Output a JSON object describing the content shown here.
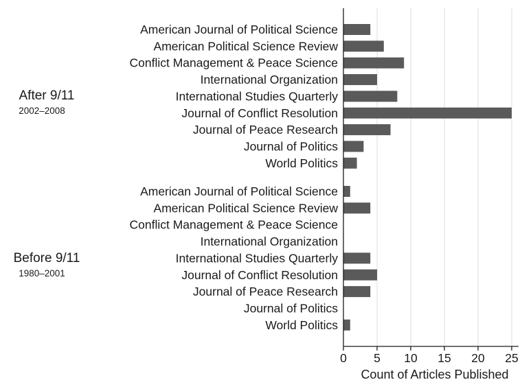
{
  "chart_data": {
    "type": "bar",
    "orientation": "horizontal",
    "xlabel": "Count of Articles Published",
    "xlim": [
      0,
      26
    ],
    "xticks": [
      0,
      5,
      10,
      15,
      20,
      25
    ],
    "grid": "vertical",
    "bar_color": "#5a5a5a",
    "groups": [
      {
        "name": "After 9/11",
        "period": "2002–2008",
        "categories": [
          "American Journal of Political Science",
          "American Political Science Review",
          "Conflict Management & Peace Science",
          "International Organization",
          "International Studies Quarterly",
          "Journal of Conflict Resolution",
          "Journal of Peace Research",
          "Journal of Politics",
          "World Politics"
        ],
        "values": [
          4,
          6,
          9,
          5,
          8,
          25,
          7,
          3,
          2
        ]
      },
      {
        "name": "Before 9/11",
        "period": "1980–2001",
        "categories": [
          "American Journal of Political Science",
          "American Political Science Review",
          "Conflict Management & Peace Science",
          "International Organization",
          "International Studies Quarterly",
          "Journal of Conflict Resolution",
          "Journal of Peace Research",
          "Journal of Politics",
          "World Politics"
        ],
        "values": [
          1,
          4,
          0,
          0,
          4,
          5,
          4,
          0,
          1
        ]
      }
    ]
  }
}
